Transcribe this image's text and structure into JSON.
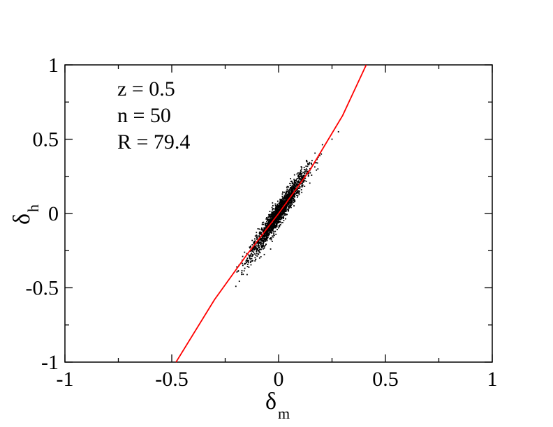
{
  "chart_data": {
    "type": "scatter",
    "title": "",
    "xlabel": {
      "symbol": "δ",
      "subscript": "m"
    },
    "ylabel": {
      "symbol": "δ",
      "subscript": "h"
    },
    "xlim": [
      -1,
      1
    ],
    "ylim": [
      -1,
      1
    ],
    "xticks": [
      -1,
      -0.5,
      0,
      0.5,
      1
    ],
    "xtick_labels": [
      "-1",
      "-0.5",
      "0",
      "0.5",
      "1"
    ],
    "yticks": [
      -1,
      -0.5,
      0,
      0.5,
      1
    ],
    "ytick_labels": [
      "-1",
      "-0.5",
      "0",
      "0.5",
      "1"
    ],
    "minor_tick_step": 0.25,
    "grid": false,
    "annotations": [
      "z = 0.5",
      "n = 50",
      "R = 79.4"
    ],
    "scatter_cloud": {
      "color": "#000000",
      "approx_point_count": 1800,
      "trend_slope": 2.1,
      "center": [
        0,
        0
      ],
      "x_extent": [
        -0.2,
        0.28
      ],
      "y_extent": [
        -0.49,
        0.55
      ],
      "x_spread_sd": 0.065,
      "y_residual_sd": 0.04,
      "sample_points": [
        [
          -0.2,
          -0.49
        ],
        [
          -0.15,
          -0.33
        ],
        [
          -0.12,
          -0.28
        ],
        [
          -0.1,
          -0.2
        ],
        [
          -0.05,
          -0.1
        ],
        [
          0,
          0
        ],
        [
          0.05,
          0.1
        ],
        [
          0.1,
          0.21
        ],
        [
          0.13,
          0.3
        ],
        [
          0.2,
          0.4
        ],
        [
          0.25,
          0.5
        ],
        [
          0.28,
          0.55
        ]
      ]
    },
    "series": [
      {
        "type": "line",
        "color": "#ff0000",
        "x": [
          -0.48,
          -0.3,
          -0.15,
          0,
          0.15,
          0.3,
          0.41
        ],
        "y": [
          -1,
          -0.58,
          -0.28,
          0,
          0.3,
          0.66,
          1
        ]
      }
    ]
  }
}
